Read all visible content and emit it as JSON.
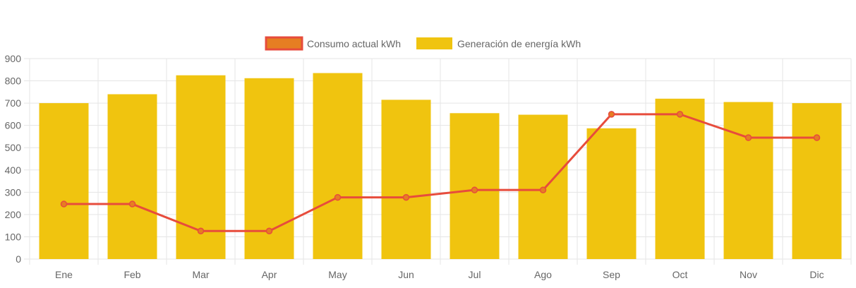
{
  "chart_data": {
    "type": "bar",
    "categories": [
      "Ene",
      "Feb",
      "Mar",
      "Apr",
      "May",
      "Jun",
      "Jul",
      "Ago",
      "Sep",
      "Oct",
      "Nov",
      "Dic"
    ],
    "series": [
      {
        "name": "Consumo actual kWh",
        "type": "line",
        "values": [
          247,
          247,
          126,
          126,
          277,
          277,
          310,
          310,
          650,
          650,
          545,
          545
        ]
      },
      {
        "name": "Generación de energía kWh",
        "type": "bar",
        "values": [
          700,
          740,
          825,
          812,
          835,
          715,
          655,
          648,
          587,
          720,
          705,
          700
        ]
      }
    ],
    "title": "",
    "xlabel": "",
    "ylabel": "",
    "ylim": [
      0,
      900
    ],
    "yticks": [
      0,
      100,
      200,
      300,
      400,
      500,
      600,
      700,
      800,
      900
    ],
    "grid": true,
    "legend_position": "top",
    "colors": {
      "bar": "#f0c40f",
      "line": "#e74c3c",
      "line_point_fill": "#e67e22",
      "legend_line_box_fill": "#e67e22",
      "grid": "#e5e5e5",
      "axis_text": "#666666",
      "legend_text": "#666666"
    }
  }
}
